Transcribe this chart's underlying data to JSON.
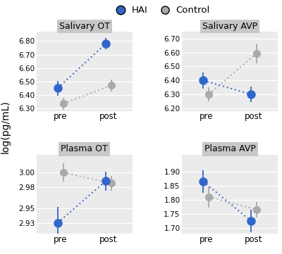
{
  "panels": [
    {
      "title": "Salivary OT",
      "row": 0,
      "col": 0,
      "ylim": [
        6.28,
        6.87
      ],
      "yticks": [
        6.3,
        6.4,
        6.5,
        6.6,
        6.7,
        6.8
      ],
      "hai": {
        "pre": 6.45,
        "post": 6.78,
        "pre_err": 0.055,
        "post_err": 0.042
      },
      "ctrl": {
        "pre": 6.335,
        "post": 6.47,
        "pre_err": 0.045,
        "post_err": 0.045
      }
    },
    {
      "title": "Salivary AVP",
      "row": 0,
      "col": 1,
      "ylim": [
        6.18,
        6.75
      ],
      "yticks": [
        6.2,
        6.3,
        6.4,
        6.5,
        6.6,
        6.7
      ],
      "hai": {
        "pre": 6.4,
        "post": 6.3,
        "pre_err": 0.058,
        "post_err": 0.055
      },
      "ctrl": {
        "pre": 6.3,
        "post": 6.595,
        "pre_err": 0.05,
        "post_err": 0.07
      }
    },
    {
      "title": "Plasma OT",
      "row": 1,
      "col": 0,
      "ylim": [
        2.915,
        3.025
      ],
      "yticks": [
        2.93,
        2.95,
        2.98,
        3.0
      ],
      "hai": {
        "pre": 2.93,
        "post": 2.988,
        "pre_err": 0.022,
        "post_err": 0.013
      },
      "ctrl": {
        "pre": 3.0,
        "post": 2.985,
        "pre_err": 0.013,
        "post_err": 0.01
      }
    },
    {
      "title": "Plasma AVP",
      "row": 1,
      "col": 1,
      "ylim": [
        1.68,
        1.96
      ],
      "yticks": [
        1.7,
        1.75,
        1.8,
        1.85,
        1.9
      ],
      "hai": {
        "pre": 1.865,
        "post": 1.725,
        "pre_err": 0.04,
        "post_err": 0.04
      },
      "ctrl": {
        "pre": 1.81,
        "post": 1.765,
        "pre_err": 0.038,
        "post_err": 0.028
      }
    }
  ],
  "hai_color": "#3366CC",
  "ctrl_color": "#AAAAAA",
  "bg_panel": "#EBEBEB",
  "title_bg": "#C8C8C8",
  "x_labels": [
    "pre",
    "post"
  ],
  "ylabel": "log(pg/mL)",
  "marker_size_hai": 9,
  "marker_size_ctrl": 8,
  "legend_hai": "HAI",
  "legend_ctrl": "Control"
}
